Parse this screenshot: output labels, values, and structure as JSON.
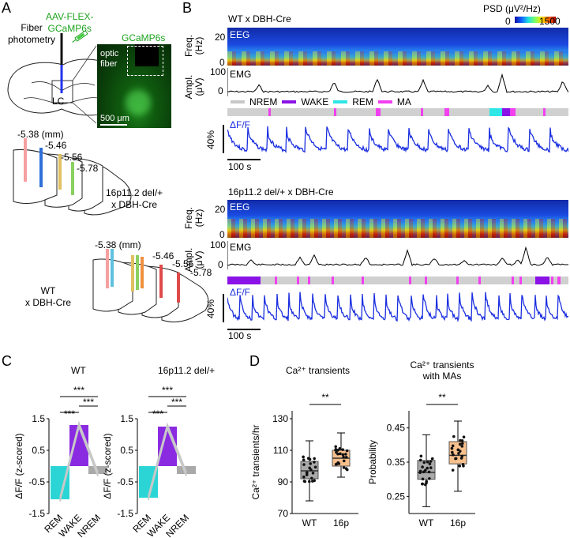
{
  "panel_a": {
    "label": "A",
    "virus": "AAV-FLEX-\nGCaMP6s",
    "fiber_photometry": "Fiber\nphotometry",
    "lc": "LC",
    "gcamp": "GCaMP6s",
    "optic_fiber": "optic\nfiber",
    "scale": "500 μm",
    "del_coords": [
      "-5.38 (mm)",
      "-5.46",
      "-5.56",
      "-5.78"
    ],
    "del_group": "16p11.2 del/+\nx DBH-Cre",
    "wt_coords": [
      "-5.38 (mm)",
      "-5.46",
      "-5.56",
      "-5.78"
    ],
    "wt_group": "WT\nx DBH-Cre"
  },
  "panel_b": {
    "label": "B",
    "wt_title": "WT x DBH-Cre",
    "del_title": "16p11.2 del/+ x DBH-Cre",
    "psd_label": "PSD (μV²/Hz)",
    "psd_min": "0",
    "psd_max": "1500",
    "freq_axis": "Freq.\n(Hz)",
    "freq_ticks": [
      "20",
      "0"
    ],
    "ampl_axis": "Ampl.\n(μV)",
    "ampl_ticks": [
      "100",
      "0"
    ],
    "eeg": "EEG",
    "emg": "EMG",
    "dff": "ΔF/F",
    "dff_scale": "40%",
    "time_scale": "100 s",
    "legend": [
      {
        "name": "NREM",
        "color": "#c8c8c8"
      },
      {
        "name": "WAKE",
        "color": "#8a12e6"
      },
      {
        "name": "REM",
        "color": "#2ee6e6"
      },
      {
        "name": "MA",
        "color": "#f040f0"
      }
    ]
  },
  "panel_c": {
    "label": "C",
    "ylabel": "ΔF/F (z-scored)",
    "sig": "***",
    "chart_data": [
      {
        "type": "bar",
        "title": "WT",
        "categories": [
          "REM",
          "WAKE",
          "NREM"
        ],
        "values": [
          -1.05,
          1.3,
          -0.25
        ],
        "colors": [
          "#2cd5d5",
          "#8a2be2",
          "#a9a9a9"
        ],
        "yticks": [
          "1.5",
          "0.5",
          "-0.5",
          "-1.5"
        ],
        "ylim": [
          -1.5,
          1.5
        ]
      },
      {
        "type": "bar",
        "title": "16p11.2 del/+",
        "categories": [
          "REM",
          "WAKE",
          "NREM"
        ],
        "values": [
          -1.0,
          1.25,
          -0.25
        ],
        "colors": [
          "#2cd5d5",
          "#8a2be2",
          "#a9a9a9"
        ],
        "yticks": [
          "1.5",
          "0.5",
          "-0.5",
          "-1.5"
        ],
        "ylim": [
          -1.5,
          1.5
        ]
      }
    ]
  },
  "panel_d": {
    "label": "D",
    "sig": "**",
    "chart_data": [
      {
        "type": "box",
        "title": "Ca²⁺ transients",
        "ylabel": "Ca²⁺ transients/hr",
        "categories": [
          "WT",
          "16p"
        ],
        "colors": [
          "#a9a9a9",
          "#f7c08c"
        ],
        "yticks": [
          "130",
          "110",
          "90",
          "70"
        ],
        "ylim": [
          70,
          135
        ],
        "boxes": [
          {
            "min": 78,
            "q1": 92,
            "median": 97,
            "q3": 103,
            "max": 116
          },
          {
            "min": 93,
            "q1": 100,
            "median": 105,
            "q3": 110,
            "max": 121
          }
        ]
      },
      {
        "type": "box",
        "title": "Ca²⁺ transients\nwith MAs",
        "ylabel": "Probability",
        "categories": [
          "WT",
          "16p"
        ],
        "colors": [
          "#a9a9a9",
          "#f7c08c"
        ],
        "yticks": [
          "0.45",
          "0.35",
          "0.25"
        ],
        "ylim": [
          0.2,
          0.5
        ],
        "boxes": [
          {
            "min": 0.22,
            "q1": 0.3,
            "median": 0.32,
            "q3": 0.355,
            "max": 0.43
          },
          {
            "min": 0.265,
            "q1": 0.345,
            "median": 0.37,
            "q3": 0.41,
            "max": 0.47
          }
        ]
      }
    ]
  }
}
